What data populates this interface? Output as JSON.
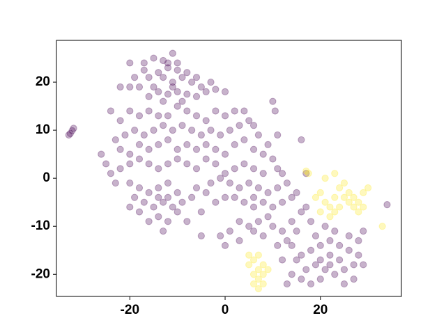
{
  "chart_data": {
    "type": "scatter",
    "xlim": [
      -35.4,
      37.0
    ],
    "ylim": [
      -24.6,
      28.7
    ],
    "xticks": [
      -20,
      0,
      20
    ],
    "yticks": [
      -20,
      -10,
      0,
      10,
      20
    ],
    "alpha": 0.3,
    "series": [
      {
        "color": "#440154",
        "x": [
          -32.5,
          -32.1,
          -31.8,
          -32.8,
          -17,
          -15,
          -13,
          -11,
          -12,
          -14,
          -16,
          -18,
          -20,
          -19,
          -13,
          -11,
          -9,
          -8,
          -7,
          -10,
          -12,
          -14,
          -15,
          -11,
          -6,
          -5,
          -3,
          -4,
          -9,
          -13,
          -16,
          -20,
          -12,
          -10,
          -22,
          -8,
          0,
          -2,
          -6,
          -10,
          -17,
          -24,
          -22,
          -20,
          -18,
          -16,
          -14,
          -12,
          -10,
          -8,
          -6,
          -4,
          -2,
          0,
          2,
          4,
          5,
          6,
          3,
          1,
          -1,
          -3,
          -5,
          -7,
          -9,
          -11,
          -13,
          -15,
          -17,
          -19,
          -21,
          -23,
          -22,
          -20,
          -18,
          -16,
          -14,
          -12,
          -10,
          -8,
          -6,
          -4,
          -2,
          0,
          2,
          4,
          6,
          8,
          7,
          9,
          10,
          11,
          12,
          8,
          6,
          4,
          2,
          0,
          -2,
          -4,
          -6,
          -8,
          -10,
          -12,
          -14,
          -16,
          -18,
          -20,
          -22,
          -24,
          -26,
          -25,
          -23,
          -20,
          -3,
          -1,
          1,
          3,
          5,
          7,
          9,
          11,
          13,
          14,
          12,
          10,
          8,
          6,
          4,
          2,
          0,
          -2,
          -4,
          -6,
          10,
          10.5,
          11,
          16,
          17,
          9,
          7,
          5,
          3,
          1,
          -1,
          -5,
          0,
          3,
          6,
          8,
          10,
          12,
          14,
          16,
          18,
          11,
          13,
          15,
          17,
          6,
          15,
          -18,
          -16,
          -14,
          -12,
          -10,
          -9,
          -11,
          -13,
          -15,
          -17,
          -19,
          -14,
          -12,
          -10,
          -16,
          -18,
          -20,
          -13,
          -8,
          -7,
          -5,
          -12,
          -14,
          16,
          18,
          20,
          22,
          24,
          26,
          28,
          27,
          25,
          23,
          21,
          19,
          17,
          15,
          14,
          13,
          16,
          18,
          20,
          22,
          24,
          26,
          28,
          29,
          27,
          25,
          20,
          22,
          19,
          23,
          21,
          29,
          14,
          12,
          34
        ],
        "y": [
          9.3,
          9.9,
          10.4,
          9.0,
          24,
          25,
          24.5,
          26,
          23,
          22,
          21,
          19,
          19,
          21,
          21,
          20,
          21,
          22,
          20,
          18,
          17.5,
          18,
          19,
          19,
          17,
          19,
          20,
          18,
          16,
          16,
          17,
          24,
          24,
          24,
          19,
          17.5,
          18,
          18.5,
          21,
          22.5,
          22.5,
          14,
          12,
          14,
          13,
          14,
          13,
          13,
          15,
          14,
          13,
          12,
          14,
          13,
          14,
          14,
          12,
          11,
          11,
          10,
          9,
          10,
          9,
          10,
          11,
          10,
          11,
          10,
          9,
          10,
          9,
          8,
          6,
          5,
          7,
          6,
          7,
          8,
          6,
          7,
          6,
          7,
          6,
          5,
          7,
          8,
          6,
          5,
          9,
          7,
          4,
          2,
          1,
          1,
          2,
          3,
          2,
          1,
          3,
          4,
          2,
          3,
          4,
          3,
          2,
          3,
          4,
          3,
          2,
          1,
          5,
          3,
          -1,
          -1,
          -1,
          0,
          -1,
          -2,
          -1,
          -2,
          -3,
          -2,
          -1,
          -4,
          -5,
          -6,
          -5,
          -4,
          -5,
          -4,
          -4,
          -5,
          -3,
          -2,
          16,
          14,
          9,
          8,
          1,
          -8,
          -9,
          -10,
          -9,
          -11,
          -12,
          -12,
          -14,
          -13,
          -11,
          -12,
          -10,
          -11,
          -9,
          -7,
          -9,
          -14,
          -13,
          -11,
          -6,
          -6,
          -3,
          -2,
          -3,
          -2,
          -1,
          -3,
          -5,
          -6,
          -5,
          -6,
          -5,
          -4,
          -8,
          -9,
          -7,
          -9,
          -7,
          -6,
          -11,
          -9,
          -4,
          -7,
          -4,
          -4,
          -16,
          -15,
          -14,
          -13,
          -14,
          -15,
          -16,
          -18,
          -19,
          -20,
          -19,
          -18,
          -19,
          -17,
          -20,
          -22,
          -21,
          -22,
          -21,
          -18,
          -17,
          -12,
          -13,
          -18,
          -21,
          -22,
          -17,
          -16,
          -12,
          -11,
          -10,
          -11,
          -14,
          -17,
          -5.5
        ]
      },
      {
        "color": "#fde725",
        "x": [
          17,
          17.5,
          21,
          23,
          20,
          21,
          22,
          23,
          24,
          25,
          26,
          27,
          28,
          29,
          30,
          26,
          27,
          28,
          25,
          24,
          20,
          22,
          19,
          23,
          33,
          29,
          5,
          5,
          6,
          7,
          6,
          7,
          8,
          7,
          8,
          8,
          6,
          7,
          9
        ],
        "y": [
          1.5,
          1,
          0,
          1,
          -3,
          -5,
          -6,
          -4,
          -2,
          -1,
          -3,
          -4,
          -5,
          -3,
          -2,
          -5,
          -6,
          -7,
          -4,
          -6,
          -7,
          -8,
          -4,
          -7,
          -10,
          -6,
          -16,
          -18,
          -17,
          -19,
          -20,
          -21,
          -22,
          -16,
          -18,
          -20,
          -22,
          -23,
          -19
        ]
      }
    ]
  }
}
